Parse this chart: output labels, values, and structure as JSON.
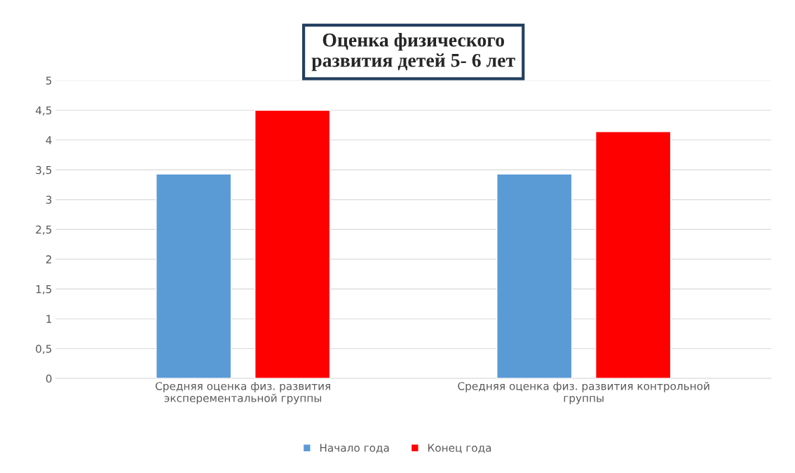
{
  "chart_data": {
    "type": "bar",
    "title": "Оценка физического\nразвития детей 5- 6 лет",
    "categories": [
      "Средняя оценка физ. развития\nэксперементальной группы",
      "Средняя оценка физ. развития контрольной\nгруппы"
    ],
    "series": [
      {
        "name": "Начало года",
        "color": "#5b9bd5",
        "values": [
          3.43,
          3.43
        ]
      },
      {
        "name": "Конец года",
        "color": "#ff0000",
        "values": [
          4.5,
          4.14
        ]
      }
    ],
    "ylim": [
      0,
      5
    ],
    "yticks": [
      0,
      {
        "value": 0.5,
        "label": "0,5"
      },
      1,
      {
        "value": 1.5,
        "label": "1,5"
      },
      2,
      {
        "value": 2.5,
        "label": "2,5"
      },
      3,
      {
        "value": 3.5,
        "label": "3,5"
      },
      4,
      {
        "value": 4.5,
        "label": "4,5"
      },
      5
    ],
    "grid": "y",
    "legend": "bottom"
  }
}
